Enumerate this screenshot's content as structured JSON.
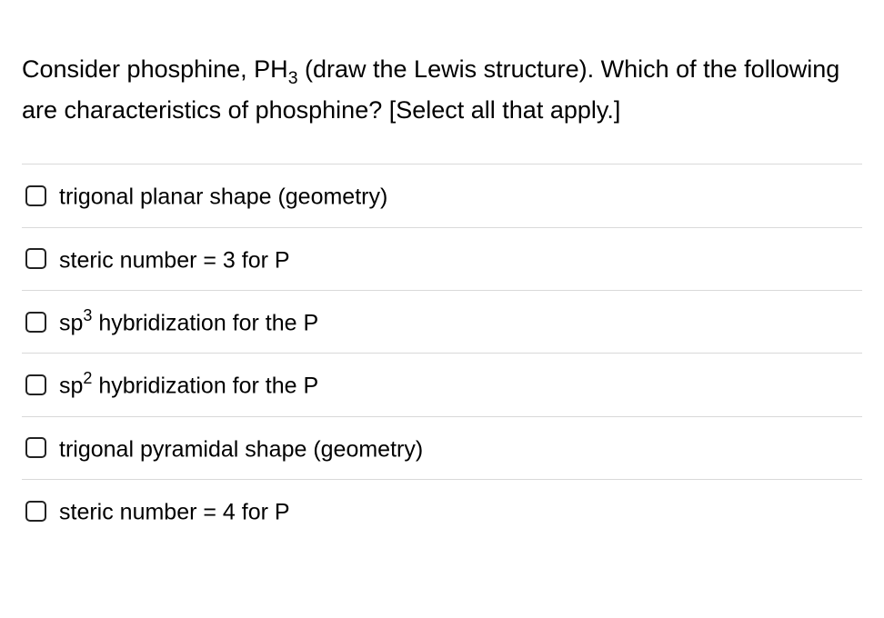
{
  "question": {
    "prefix": "Consider phosphine, PH",
    "subscript": "3",
    "middle": " (draw the Lewis structure).  Which of the following are characteristics of phosphine?  [Select all that apply.]"
  },
  "options": [
    {
      "before": "trigonal planar shape (geometry)",
      "sup": "",
      "after": ""
    },
    {
      "before": "steric number = 3 for P",
      "sup": "",
      "after": ""
    },
    {
      "before": "sp",
      "sup": "3",
      "after": " hybridization for the P"
    },
    {
      "before": "sp",
      "sup": "2",
      "after": " hybridization for the P"
    },
    {
      "before": "trigonal pyramidal shape (geometry)",
      "sup": "",
      "after": ""
    },
    {
      "before": "steric number = 4 for P",
      "sup": "",
      "after": ""
    }
  ],
  "style": {
    "text_color": "#000000",
    "border_color": "#d9d9d9",
    "checkbox_border": "#222222",
    "background": "#ffffff",
    "question_fontsize": 27,
    "option_fontsize": 25
  }
}
